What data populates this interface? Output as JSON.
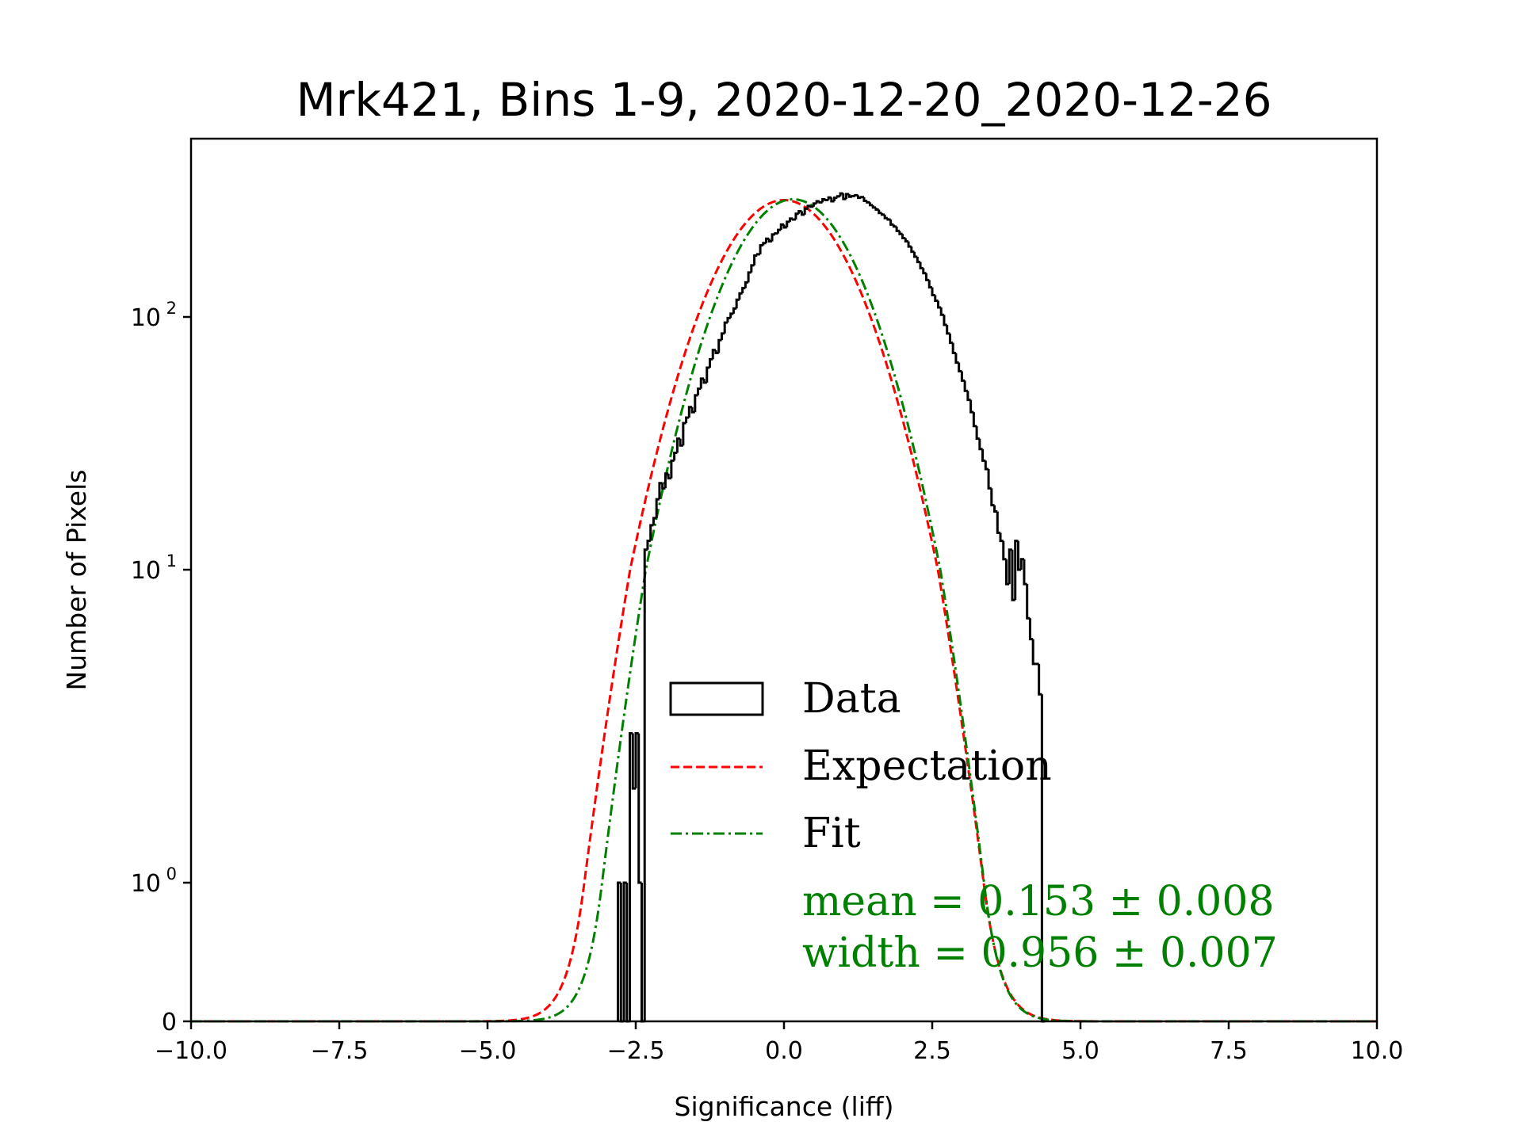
{
  "chart_data": {
    "type": "histogram",
    "title": "Mrk421, Bins 1-9, 2020-12-20_2020-12-26",
    "xlabel": "Significance (liff)",
    "ylabel": "Number of Pixels",
    "xlim": [
      -10,
      10
    ],
    "yscale": "symlog",
    "ylim": [
      0,
      500
    ],
    "x_ticks": [
      -10.0,
      -7.5,
      -5.0,
      -2.5,
      0.0,
      2.5,
      5.0,
      7.5,
      10.0
    ],
    "x_tick_labels": [
      "−10.0",
      "−7.5",
      "−5.0",
      "−2.5",
      "0.0",
      "2.5",
      "5.0",
      "7.5",
      "10.0"
    ],
    "y_ticks": [
      0,
      1,
      10,
      100
    ],
    "y_tick_labels": [
      {
        "base": "0",
        "exp": ""
      },
      {
        "base": "10",
        "exp": "0"
      },
      {
        "base": "10",
        "exp": "1"
      },
      {
        "base": "10",
        "exp": "2"
      }
    ],
    "legend": {
      "position": "lower-center",
      "entries": [
        {
          "label": "Data",
          "style": "step",
          "color": "#000000"
        },
        {
          "label": "Expectation",
          "style": "dashed",
          "color": "#ff0000"
        },
        {
          "label": "Fit",
          "style": "dashdot",
          "color": "#008000"
        }
      ]
    },
    "annotations": [
      {
        "text": "mean = 0.153 ± 0.008",
        "color": "#008000"
      },
      {
        "text": "width = 0.956 ± 0.007",
        "color": "#008000"
      }
    ],
    "expectation": {
      "mean": 0.0,
      "sigma": 1.0,
      "peak": 290
    },
    "fit": {
      "mean": 0.153,
      "sigma": 0.956,
      "peak": 292
    },
    "histogram": {
      "bin_start": -2.8,
      "bin_width": 0.05,
      "counts": [
        1,
        0,
        1,
        0,
        3,
        2,
        3,
        1,
        0,
        12,
        13,
        15,
        16,
        19,
        22,
        21,
        24,
        23,
        27,
        29,
        33,
        31,
        38,
        40,
        44,
        42,
        49,
        52,
        57,
        55,
        63,
        68,
        74,
        72,
        81,
        86,
        95,
        99,
        103,
        108,
        117,
        124,
        130,
        137,
        150,
        160,
        175,
        177,
        192,
        196,
        204,
        199,
        212,
        214,
        221,
        232,
        226,
        238,
        245,
        243,
        256,
        262,
        254,
        268,
        275,
        273,
        281,
        287,
        284,
        292,
        290,
        297,
        287,
        296,
        300,
        308,
        293,
        306,
        299,
        301,
        303,
        296,
        298,
        288,
        284,
        277,
        271,
        266,
        258,
        254,
        246,
        243,
        232,
        228,
        219,
        213,
        205,
        199,
        190,
        181,
        173,
        165,
        156,
        149,
        140,
        131,
        122,
        116,
        109,
        102,
        93,
        86,
        79,
        72,
        66,
        61,
        56,
        51,
        47,
        42,
        37,
        33,
        30,
        27,
        25,
        21,
        18,
        17,
        14,
        13,
        11,
        9,
        12,
        8,
        13,
        10,
        11,
        9,
        7,
        6,
        5,
        5,
        4,
        0
      ]
    }
  }
}
